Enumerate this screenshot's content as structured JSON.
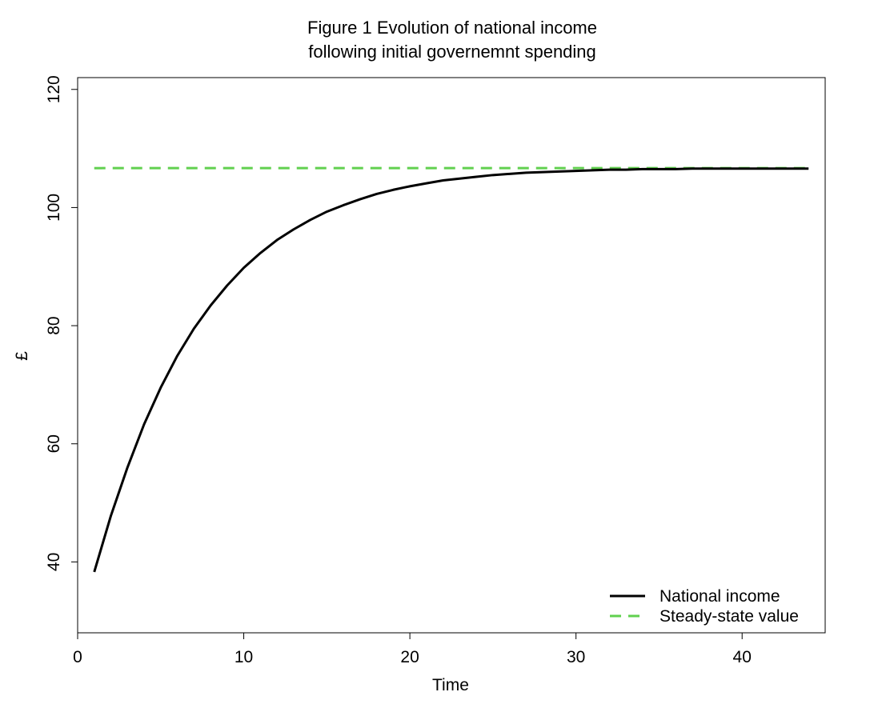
{
  "chart_data": {
    "type": "line",
    "title_lines": [
      "Figure 1  Evolution of national income",
      "following initial governemnt spending"
    ],
    "xlabel": "Time",
    "ylabel": "£",
    "xlim": [
      0,
      45
    ],
    "ylim": [
      28,
      122
    ],
    "xticks": [
      0,
      10,
      20,
      30,
      40
    ],
    "yticks": [
      40,
      60,
      80,
      100,
      120
    ],
    "grid": false,
    "legend_position": "bottom-right",
    "colors": {
      "national_income": "#000000",
      "steady_state": "#61D04F"
    },
    "series": [
      {
        "name": "National income",
        "style": "solid",
        "x": [
          1,
          2,
          3,
          4,
          5,
          6,
          7,
          8,
          9,
          10,
          11,
          12,
          13,
          14,
          15,
          16,
          17,
          18,
          19,
          20,
          21,
          22,
          23,
          24,
          25,
          26,
          27,
          28,
          29,
          30,
          31,
          32,
          33,
          34,
          35,
          36,
          37,
          38,
          39,
          40,
          41,
          42,
          43,
          44
        ],
        "y": [
          38.3,
          47.8,
          56.0,
          63.3,
          69.5,
          74.9,
          79.5,
          83.4,
          86.8,
          89.8,
          92.3,
          94.5,
          96.3,
          97.9,
          99.3,
          100.4,
          101.4,
          102.3,
          103.0,
          103.6,
          104.1,
          104.6,
          104.9,
          105.2,
          105.5,
          105.7,
          105.9,
          106.0,
          106.1,
          106.2,
          106.3,
          106.4,
          106.4,
          106.5,
          106.5,
          106.5,
          106.6,
          106.6,
          106.6,
          106.6,
          106.6,
          106.6,
          106.6,
          106.6
        ]
      },
      {
        "name": "Steady-state value",
        "style": "dashed",
        "x": [
          1,
          44
        ],
        "y": [
          106.67,
          106.67
        ]
      }
    ]
  }
}
